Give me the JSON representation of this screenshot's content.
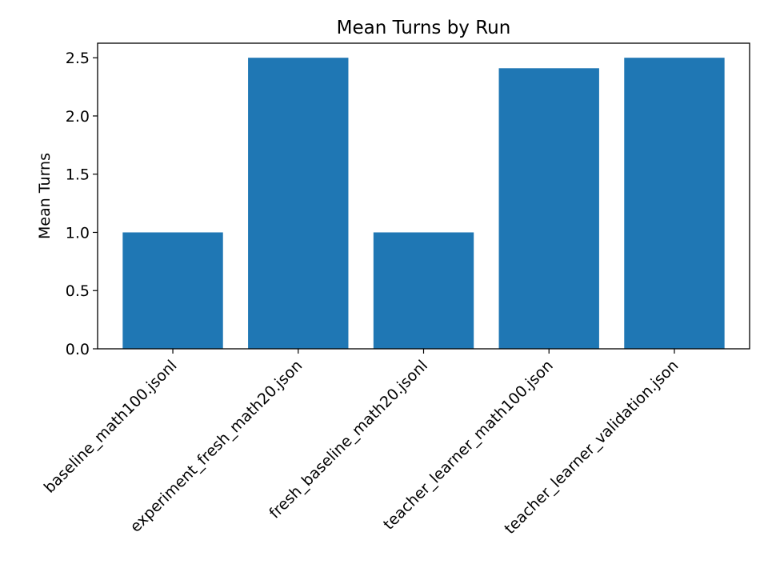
{
  "chart_data": {
    "type": "bar",
    "title": "Mean Turns by Run",
    "xlabel": "",
    "ylabel": "Mean Turns",
    "categories": [
      "baseline_math100.jsonl",
      "experiment_fresh_math20.json",
      "fresh_baseline_math20.jsonl",
      "teacher_learner_math100.json",
      "teacher_learner_validation.json"
    ],
    "values": [
      1.0,
      2.5,
      1.0,
      2.41,
      2.5
    ],
    "ylim": [
      0,
      2.625
    ],
    "yticks": [
      0.0,
      0.5,
      1.0,
      1.5,
      2.0,
      2.5
    ],
    "ytick_labels": [
      "0.0",
      "0.5",
      "1.0",
      "1.5",
      "2.0",
      "2.5"
    ],
    "grid": false,
    "bar_color": "#1f77b4"
  }
}
